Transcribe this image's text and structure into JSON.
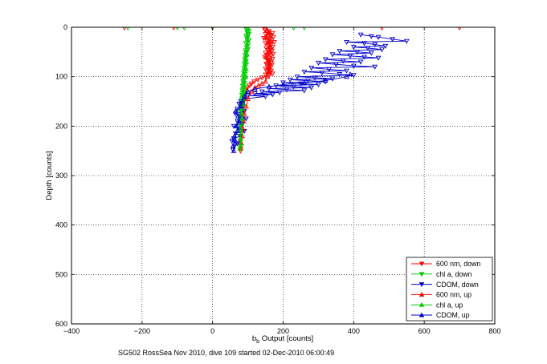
{
  "chart_data": {
    "type": "scatter",
    "xlabel_main": "b",
    "xlabel_sub": "b",
    "xlabel_rest": " Output [counts]",
    "ylabel": "Depth [counts]",
    "caption": "SG502 RossSea Nov 2010, dive 109 started 02-Dec-2010 06:00:49",
    "xlim": [
      -400,
      800
    ],
    "ylim": [
      0,
      600
    ],
    "y_reversed": true,
    "grid": true,
    "grid_style": "dotted",
    "legend_position": "bottom-right",
    "x_ticks": [
      -400,
      -200,
      0,
      200,
      400,
      600,
      800
    ],
    "y_ticks": [
      0,
      100,
      200,
      300,
      400,
      500,
      600
    ],
    "series": [
      {
        "name": "600 nm, down",
        "color": "#ff0000",
        "marker": "triangle-down",
        "x": [
          148,
          160,
          155,
          170,
          150,
          165,
          158,
          172,
          145,
          162,
          168,
          155,
          175,
          150,
          160,
          165,
          158,
          170,
          152,
          163,
          157,
          168,
          160,
          150,
          172,
          155,
          165,
          148,
          160,
          170,
          155,
          162,
          158,
          166,
          152,
          168,
          160,
          156,
          164,
          150,
          158,
          166,
          154,
          162,
          170,
          150,
          160,
          140,
          128,
          118,
          110,
          105,
          98,
          95,
          92,
          90,
          88,
          85,
          85,
          84,
          82,
          82,
          80,
          80,
          78,
          78,
          80,
          79,
          -250,
          -110,
          0,
          480,
          700
        ],
        "y": [
          5,
          8,
          10,
          12,
          14,
          16,
          18,
          20,
          22,
          24,
          26,
          28,
          30,
          32,
          34,
          36,
          38,
          40,
          42,
          44,
          46,
          48,
          50,
          52,
          54,
          56,
          58,
          60,
          62,
          64,
          66,
          68,
          70,
          72,
          74,
          76,
          78,
          80,
          82,
          84,
          86,
          88,
          90,
          92,
          94,
          96,
          98,
          102,
          106,
          110,
          114,
          118,
          122,
          128,
          135,
          142,
          150,
          160,
          170,
          180,
          190,
          200,
          210,
          220,
          230,
          238,
          245,
          250,
          1,
          1,
          1,
          1,
          1
        ]
      },
      {
        "name": "chl a, down",
        "color": "#00cc00",
        "marker": "triangle-down",
        "x": [
          100,
          96,
          104,
          98,
          102,
          95,
          100,
          97,
          103,
          99,
          94,
          101,
          98,
          96,
          100,
          93,
          97,
          95,
          92,
          96,
          94,
          91,
          95,
          93,
          90,
          94,
          92,
          89,
          93,
          90,
          88,
          92,
          89,
          87,
          91,
          88,
          86,
          90,
          87,
          85,
          89,
          86,
          84,
          88,
          85,
          83,
          87,
          84,
          82,
          86,
          83,
          81,
          85,
          82,
          80,
          84,
          81,
          79,
          83,
          80,
          78,
          82,
          79,
          77,
          81,
          78,
          80,
          76,
          79,
          77,
          80,
          78,
          -240,
          -100,
          -80,
          0,
          230,
          260
        ],
        "y": [
          2,
          5,
          8,
          11,
          14,
          17,
          20,
          23,
          26,
          29,
          32,
          35,
          38,
          41,
          44,
          47,
          50,
          53,
          56,
          59,
          62,
          65,
          68,
          71,
          74,
          77,
          80,
          83,
          86,
          89,
          92,
          95,
          98,
          101,
          104,
          107,
          110,
          113,
          116,
          119,
          122,
          125,
          128,
          131,
          134,
          137,
          140,
          143,
          146,
          149,
          152,
          155,
          158,
          161,
          164,
          167,
          170,
          173,
          176,
          179,
          182,
          185,
          188,
          191,
          194,
          197,
          200,
          205,
          210,
          220,
          230,
          245,
          1,
          1,
          1,
          1,
          1,
          1
        ]
      },
      {
        "name": "CDOM, down",
        "color": "#0000cc",
        "marker": "triangle-down",
        "x": [
          420,
          450,
          470,
          510,
          550,
          380,
          430,
          460,
          490,
          400,
          440,
          480,
          360,
          410,
          450,
          340,
          390,
          430,
          470,
          320,
          370,
          420,
          300,
          350,
          400,
          460,
          280,
          330,
          380,
          260,
          310,
          360,
          400,
          240,
          290,
          340,
          220,
          270,
          320,
          200,
          250,
          300,
          180,
          230,
          280,
          160,
          210,
          260,
          140,
          190,
          120,
          170,
          100,
          150,
          90,
          80,
          75,
          85,
          70,
          90,
          65,
          80,
          95,
          70,
          85,
          60,
          75,
          90,
          65,
          80,
          60,
          55,
          70,
          62,
          58
        ],
        "y": [
          15,
          18,
          20,
          24,
          28,
          30,
          32,
          35,
          38,
          40,
          42,
          45,
          48,
          50,
          52,
          55,
          58,
          60,
          62,
          65,
          68,
          70,
          72,
          75,
          78,
          80,
          82,
          85,
          88,
          90,
          92,
          95,
          97,
          100,
          102,
          104,
          106,
          108,
          110,
          112,
          114,
          116,
          118,
          120,
          122,
          124,
          126,
          128,
          130,
          132,
          134,
          136,
          138,
          140,
          145,
          150,
          155,
          160,
          165,
          170,
          175,
          180,
          185,
          190,
          195,
          200,
          205,
          210,
          215,
          220,
          225,
          230,
          235,
          240,
          248
        ]
      },
      {
        "name": "600 nm, up",
        "color": "#ff0000",
        "marker": "triangle-up",
        "x": [
          80,
          82,
          84,
          86,
          88,
          90,
          95,
          100,
          110,
          120,
          130,
          140,
          150,
          155,
          158,
          160,
          155,
          150,
          160,
          165,
          158,
          150,
          160,
          155,
          150
        ],
        "y": [
          245,
          235,
          220,
          205,
          190,
          175,
          160,
          145,
          130,
          122,
          118,
          114,
          110,
          100,
          90,
          80,
          70,
          60,
          50,
          40,
          30,
          20,
          12,
          6,
          2
        ]
      },
      {
        "name": "chl a, up",
        "color": "#00cc00",
        "marker": "triangle-up",
        "x": [
          78,
          80,
          79,
          81,
          80,
          82,
          83,
          82,
          84,
          85,
          86,
          88,
          90,
          92,
          94,
          95,
          96,
          97,
          98,
          99,
          100,
          100
        ],
        "y": [
          245,
          235,
          225,
          215,
          205,
          195,
          185,
          175,
          165,
          155,
          145,
          135,
          125,
          115,
          100,
          85,
          70,
          55,
          40,
          25,
          10,
          2
        ]
      },
      {
        "name": "CDOM, up",
        "color": "#0000cc",
        "marker": "triangle-up",
        "x": [
          60,
          58,
          65,
          62,
          70,
          68,
          75,
          72,
          65,
          80,
          85,
          90,
          100,
          120,
          160,
          200,
          260,
          320,
          380,
          390
        ],
        "y": [
          250,
          240,
          230,
          220,
          210,
          200,
          190,
          180,
          170,
          160,
          150,
          140,
          130,
          125,
          120,
          116,
          112,
          108,
          100,
          95
        ]
      }
    ]
  }
}
